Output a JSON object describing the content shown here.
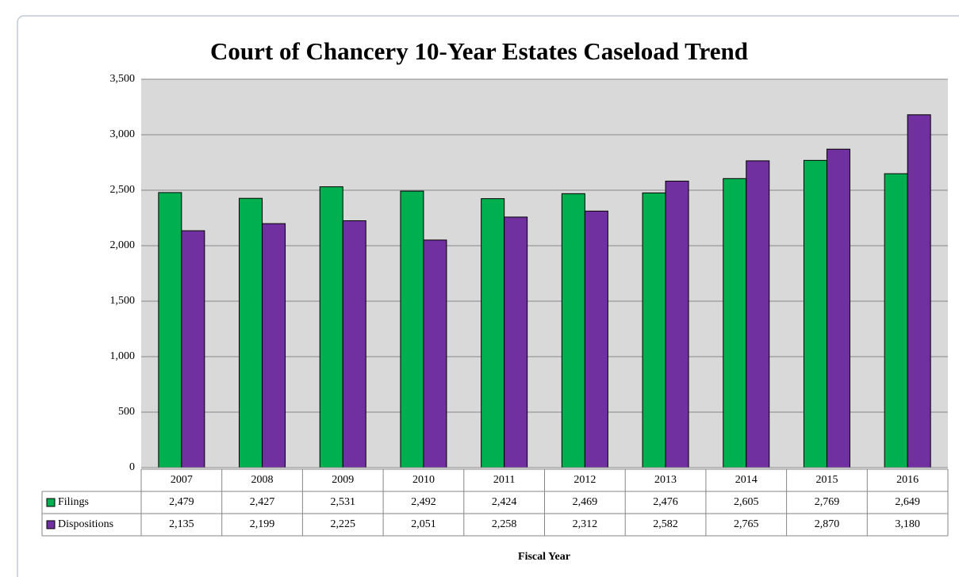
{
  "chart_data": {
    "type": "bar",
    "title": "Court of Chancery 10-Year Estates Caseload Trend",
    "x_label": "Fiscal Year",
    "categories": [
      "2007",
      "2008",
      "2009",
      "2010",
      "2011",
      "2012",
      "2013",
      "2014",
      "2015",
      "2016"
    ],
    "series": [
      {
        "name": "Filings",
        "color": "#00b050",
        "values": [
          2479,
          2427,
          2531,
          2492,
          2424,
          2469,
          2476,
          2605,
          2769,
          2649
        ],
        "value_labels": [
          "2,479",
          "2,427",
          "2,531",
          "2,492",
          "2,424",
          "2,469",
          "2,476",
          "2,605",
          "2,769",
          "2,649"
        ]
      },
      {
        "name": "Dispositions",
        "color": "#7030a0",
        "values": [
          2135,
          2199,
          2225,
          2051,
          2258,
          2312,
          2582,
          2765,
          2870,
          3180
        ],
        "value_labels": [
          "2,135",
          "2,199",
          "2,225",
          "2,051",
          "2,258",
          "2,312",
          "2,582",
          "2,765",
          "2,870",
          "3,180"
        ]
      }
    ],
    "ylim": [
      0,
      3500
    ],
    "yticks": [
      0,
      500,
      {
        "value": 1000,
        "label": "1,000"
      },
      {
        "value": 1500,
        "label": "1,500"
      },
      {
        "value": 2000,
        "label": "2,000"
      },
      {
        "value": 2500,
        "label": "2,500"
      },
      {
        "value": 3000,
        "label": "3,000"
      },
      {
        "value": 3500,
        "label": "3,500"
      }
    ],
    "grid": true,
    "plot_background": "#d9d9d9"
  }
}
